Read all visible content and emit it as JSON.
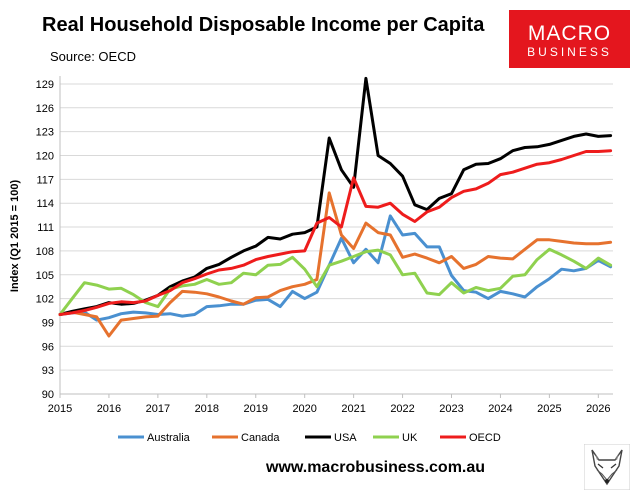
{
  "title": "Real Household Disposable Income per Capita",
  "source": "Source: OECD",
  "logo": {
    "line1": "MACRO",
    "line2": "BUSINESS"
  },
  "footer": {
    "url": "www.macrobusiness.com.au"
  },
  "icons": {
    "mascot": "fox-icon"
  },
  "chart_data": {
    "type": "line",
    "ylabel": "Index (Q1 2015 = 100)",
    "xlabel": "",
    "xlim": [
      2015,
      2026.3
    ],
    "ylim": [
      90,
      130
    ],
    "yticks": [
      90,
      93,
      96,
      99,
      102,
      105,
      108,
      111,
      114,
      117,
      120,
      123,
      126,
      129
    ],
    "xticks": [
      2015,
      2016,
      2017,
      2018,
      2019,
      2020,
      2021,
      2022,
      2023,
      2024,
      2025,
      2026
    ],
    "grid": "horizontal",
    "legend_position": "bottom",
    "series": [
      {
        "name": "Australia",
        "color": "#4a90d0",
        "points": [
          [
            2015,
            100.0
          ],
          [
            2015.25,
            100.2
          ],
          [
            2015.5,
            100.3
          ],
          [
            2015.75,
            99.3
          ],
          [
            2016,
            99.6
          ],
          [
            2016.25,
            100.1
          ],
          [
            2016.5,
            100.3
          ],
          [
            2016.75,
            100.2
          ],
          [
            2017,
            100.0
          ],
          [
            2017.25,
            100.1
          ],
          [
            2017.5,
            99.8
          ],
          [
            2017.75,
            100.0
          ],
          [
            2018,
            101.0
          ],
          [
            2018.25,
            101.1
          ],
          [
            2018.5,
            101.3
          ],
          [
            2018.75,
            101.3
          ],
          [
            2019,
            101.8
          ],
          [
            2019.25,
            101.9
          ],
          [
            2019.5,
            101.0
          ],
          [
            2019.75,
            102.9
          ],
          [
            2020,
            102.0
          ],
          [
            2020.25,
            102.8
          ],
          [
            2020.5,
            106.2
          ],
          [
            2020.75,
            109.6
          ],
          [
            2021,
            106.5
          ],
          [
            2021.25,
            108.2
          ],
          [
            2021.5,
            106.5
          ],
          [
            2021.75,
            112.4
          ],
          [
            2022,
            110.0
          ],
          [
            2022.25,
            110.2
          ],
          [
            2022.5,
            108.5
          ],
          [
            2022.75,
            108.5
          ],
          [
            2023,
            104.9
          ],
          [
            2023.25,
            103.0
          ],
          [
            2023.5,
            102.8
          ],
          [
            2023.75,
            102.0
          ],
          [
            2024,
            102.9
          ],
          [
            2024.25,
            102.6
          ],
          [
            2024.5,
            102.2
          ],
          [
            2024.75,
            103.5
          ],
          [
            2025,
            104.5
          ],
          [
            2025.25,
            105.7
          ],
          [
            2025.5,
            105.5
          ],
          [
            2025.75,
            105.8
          ],
          [
            2026,
            106.8
          ],
          [
            2026.25,
            106.0
          ]
        ]
      },
      {
        "name": "Canada",
        "color": "#e6722e",
        "points": [
          [
            2015,
            100.0
          ],
          [
            2015.25,
            100.3
          ],
          [
            2015.5,
            100.0
          ],
          [
            2015.75,
            99.7
          ],
          [
            2016,
            97.3
          ],
          [
            2016.25,
            99.3
          ],
          [
            2016.5,
            99.5
          ],
          [
            2016.75,
            99.7
          ],
          [
            2017,
            99.8
          ],
          [
            2017.25,
            101.5
          ],
          [
            2017.5,
            102.9
          ],
          [
            2017.75,
            102.8
          ],
          [
            2018,
            102.6
          ],
          [
            2018.25,
            102.2
          ],
          [
            2018.5,
            101.7
          ],
          [
            2018.75,
            101.3
          ],
          [
            2019,
            102.1
          ],
          [
            2019.25,
            102.2
          ],
          [
            2019.5,
            103.0
          ],
          [
            2019.75,
            103.5
          ],
          [
            2020,
            103.8
          ],
          [
            2020.25,
            104.4
          ],
          [
            2020.5,
            115.3
          ],
          [
            2020.75,
            110.0
          ],
          [
            2021,
            108.3
          ],
          [
            2021.25,
            111.5
          ],
          [
            2021.5,
            110.3
          ],
          [
            2021.75,
            110.0
          ],
          [
            2022,
            107.2
          ],
          [
            2022.25,
            107.6
          ],
          [
            2022.5,
            107.1
          ],
          [
            2022.75,
            106.5
          ],
          [
            2023,
            107.3
          ],
          [
            2023.25,
            105.8
          ],
          [
            2023.5,
            106.3
          ],
          [
            2023.75,
            107.3
          ],
          [
            2024,
            107.1
          ],
          [
            2024.25,
            107.0
          ],
          [
            2024.5,
            108.2
          ],
          [
            2024.75,
            109.4
          ],
          [
            2025,
            109.4
          ],
          [
            2025.25,
            109.2
          ],
          [
            2025.5,
            109.0
          ],
          [
            2025.75,
            108.9
          ],
          [
            2026,
            108.9
          ],
          [
            2026.25,
            109.1
          ]
        ]
      },
      {
        "name": "USA",
        "color": "#000000",
        "points": [
          [
            2015,
            100.0
          ],
          [
            2015.25,
            100.4
          ],
          [
            2015.5,
            100.7
          ],
          [
            2015.75,
            101.0
          ],
          [
            2016,
            101.5
          ],
          [
            2016.25,
            101.3
          ],
          [
            2016.5,
            101.4
          ],
          [
            2016.75,
            101.8
          ],
          [
            2017,
            102.4
          ],
          [
            2017.25,
            103.5
          ],
          [
            2017.5,
            104.2
          ],
          [
            2017.75,
            104.7
          ],
          [
            2018,
            105.8
          ],
          [
            2018.25,
            106.3
          ],
          [
            2018.5,
            107.2
          ],
          [
            2018.75,
            108.0
          ],
          [
            2019,
            108.6
          ],
          [
            2019.25,
            109.7
          ],
          [
            2019.5,
            109.5
          ],
          [
            2019.75,
            110.1
          ],
          [
            2020,
            110.3
          ],
          [
            2020.25,
            111.0
          ],
          [
            2020.5,
            122.2
          ],
          [
            2020.75,
            118.2
          ],
          [
            2021,
            116.0
          ],
          [
            2021.25,
            129.7
          ],
          [
            2021.5,
            120.0
          ],
          [
            2021.75,
            119.0
          ],
          [
            2022,
            117.4
          ],
          [
            2022.25,
            113.8
          ],
          [
            2022.5,
            113.2
          ],
          [
            2022.75,
            114.6
          ],
          [
            2023,
            115.2
          ],
          [
            2023.25,
            118.2
          ],
          [
            2023.5,
            118.9
          ],
          [
            2023.75,
            119.0
          ],
          [
            2024,
            119.6
          ],
          [
            2024.25,
            120.6
          ],
          [
            2024.5,
            121.0
          ],
          [
            2024.75,
            121.1
          ],
          [
            2025,
            121.4
          ],
          [
            2025.25,
            121.9
          ],
          [
            2025.5,
            122.4
          ],
          [
            2025.75,
            122.7
          ],
          [
            2026,
            122.4
          ],
          [
            2026.25,
            122.5
          ]
        ]
      },
      {
        "name": "UK",
        "color": "#8fd14f",
        "points": [
          [
            2015,
            100.0
          ],
          [
            2015.25,
            102.0
          ],
          [
            2015.5,
            104.0
          ],
          [
            2015.75,
            103.7
          ],
          [
            2016,
            103.2
          ],
          [
            2016.25,
            103.3
          ],
          [
            2016.5,
            102.5
          ],
          [
            2016.75,
            101.5
          ],
          [
            2017,
            101.0
          ],
          [
            2017.25,
            103.2
          ],
          [
            2017.5,
            103.6
          ],
          [
            2017.75,
            103.8
          ],
          [
            2018,
            104.4
          ],
          [
            2018.25,
            103.8
          ],
          [
            2018.5,
            104.0
          ],
          [
            2018.75,
            105.2
          ],
          [
            2019,
            105.0
          ],
          [
            2019.25,
            106.2
          ],
          [
            2019.5,
            106.3
          ],
          [
            2019.75,
            107.2
          ],
          [
            2020,
            105.7
          ],
          [
            2020.25,
            103.5
          ],
          [
            2020.5,
            106.2
          ],
          [
            2020.75,
            106.7
          ],
          [
            2021,
            107.3
          ],
          [
            2021.25,
            107.9
          ],
          [
            2021.5,
            108.1
          ],
          [
            2021.75,
            107.5
          ],
          [
            2022,
            105.0
          ],
          [
            2022.25,
            105.2
          ],
          [
            2022.5,
            102.7
          ],
          [
            2022.75,
            102.5
          ],
          [
            2023,
            104.0
          ],
          [
            2023.25,
            102.7
          ],
          [
            2023.5,
            103.4
          ],
          [
            2023.75,
            103.0
          ],
          [
            2024,
            103.3
          ],
          [
            2024.25,
            104.8
          ],
          [
            2024.5,
            105.0
          ],
          [
            2024.75,
            106.9
          ],
          [
            2025,
            108.2
          ],
          [
            2025.25,
            107.5
          ],
          [
            2025.5,
            106.7
          ],
          [
            2025.75,
            105.8
          ],
          [
            2026,
            107.1
          ],
          [
            2026.25,
            106.2
          ]
        ]
      },
      {
        "name": "OECD",
        "color": "#ee1c1c",
        "points": [
          [
            2015,
            100.0
          ],
          [
            2015.25,
            100.2
          ],
          [
            2015.5,
            100.5
          ],
          [
            2015.75,
            100.9
          ],
          [
            2016,
            101.4
          ],
          [
            2016.25,
            101.6
          ],
          [
            2016.5,
            101.5
          ],
          [
            2016.75,
            101.7
          ],
          [
            2017,
            102.4
          ],
          [
            2017.25,
            103.0
          ],
          [
            2017.5,
            104.0
          ],
          [
            2017.75,
            104.5
          ],
          [
            2018,
            105.1
          ],
          [
            2018.25,
            105.6
          ],
          [
            2018.5,
            105.8
          ],
          [
            2018.75,
            106.2
          ],
          [
            2019,
            106.9
          ],
          [
            2019.25,
            107.3
          ],
          [
            2019.5,
            107.6
          ],
          [
            2019.75,
            107.9
          ],
          [
            2020,
            108.0
          ],
          [
            2020.25,
            111.5
          ],
          [
            2020.5,
            112.2
          ],
          [
            2020.75,
            111.0
          ],
          [
            2021,
            117.2
          ],
          [
            2021.25,
            113.6
          ],
          [
            2021.5,
            113.5
          ],
          [
            2021.75,
            114.0
          ],
          [
            2022,
            112.6
          ],
          [
            2022.25,
            111.7
          ],
          [
            2022.5,
            112.9
          ],
          [
            2022.75,
            113.5
          ],
          [
            2023,
            114.7
          ],
          [
            2023.25,
            115.5
          ],
          [
            2023.5,
            115.8
          ],
          [
            2023.75,
            116.5
          ],
          [
            2024,
            117.6
          ],
          [
            2024.25,
            117.9
          ],
          [
            2024.5,
            118.4
          ],
          [
            2024.75,
            118.9
          ],
          [
            2025,
            119.1
          ],
          [
            2025.25,
            119.5
          ],
          [
            2025.5,
            120.0
          ],
          [
            2025.75,
            120.5
          ],
          [
            2026,
            120.5
          ],
          [
            2026.25,
            120.6
          ]
        ]
      }
    ]
  }
}
